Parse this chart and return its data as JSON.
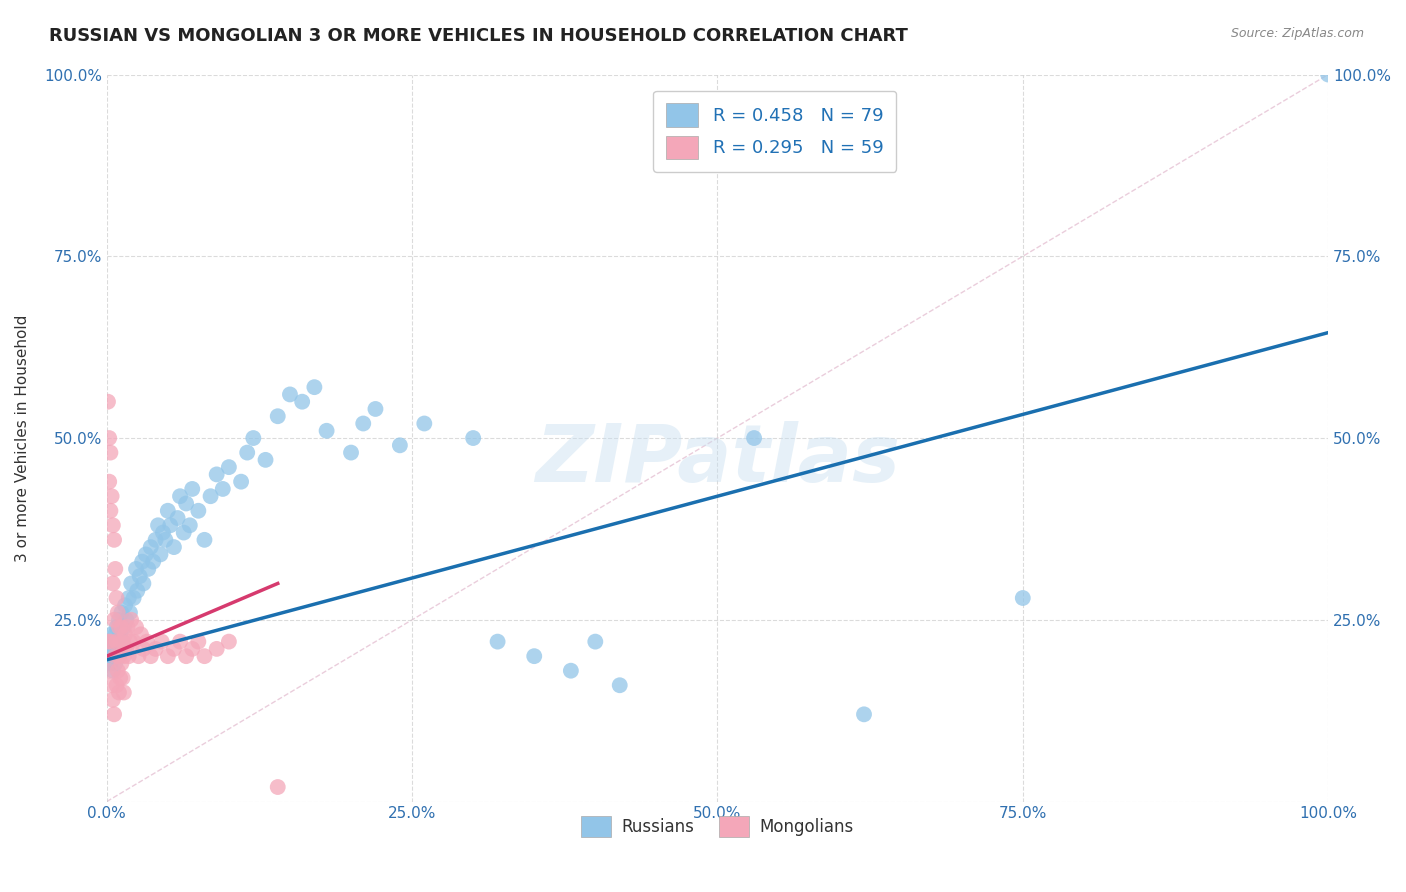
{
  "title": "RUSSIAN VS MONGOLIAN 3 OR MORE VEHICLES IN HOUSEHOLD CORRELATION CHART",
  "source": "Source: ZipAtlas.com",
  "ylabel": "3 or more Vehicles in Household",
  "watermark": "ZIPatlas",
  "russian_R": 0.458,
  "russian_N": 79,
  "mongolian_R": 0.295,
  "mongolian_N": 59,
  "russian_color": "#92c5e8",
  "mongolian_color": "#f4a7b9",
  "russian_line_color": "#1a6faf",
  "mongolian_line_color": "#d63a6e",
  "diagonal_color": "#e8c8d8",
  "grid_color": "#cccccc",
  "background_color": "#ffffff",
  "title_fontsize": 13,
  "label_fontsize": 11,
  "tick_fontsize": 11,
  "russian_x": [
    0.001,
    0.002,
    0.003,
    0.003,
    0.004,
    0.005,
    0.005,
    0.006,
    0.006,
    0.007,
    0.007,
    0.008,
    0.008,
    0.009,
    0.01,
    0.01,
    0.011,
    0.012,
    0.013,
    0.014,
    0.015,
    0.016,
    0.018,
    0.019,
    0.02,
    0.022,
    0.024,
    0.025,
    0.027,
    0.029,
    0.03,
    0.032,
    0.034,
    0.036,
    0.038,
    0.04,
    0.042,
    0.044,
    0.046,
    0.048,
    0.05,
    0.052,
    0.055,
    0.058,
    0.06,
    0.063,
    0.065,
    0.068,
    0.07,
    0.075,
    0.08,
    0.085,
    0.09,
    0.095,
    0.1,
    0.11,
    0.115,
    0.12,
    0.13,
    0.14,
    0.15,
    0.16,
    0.17,
    0.18,
    0.2,
    0.21,
    0.22,
    0.24,
    0.26,
    0.3,
    0.32,
    0.35,
    0.38,
    0.4,
    0.42,
    0.53,
    0.62,
    0.75,
    1.0
  ],
  "russian_y": [
    0.21,
    0.2,
    0.22,
    0.19,
    0.23,
    0.21,
    0.18,
    0.22,
    0.2,
    0.23,
    0.19,
    0.24,
    0.21,
    0.22,
    0.25,
    0.2,
    0.23,
    0.26,
    0.22,
    0.24,
    0.27,
    0.25,
    0.28,
    0.26,
    0.3,
    0.28,
    0.32,
    0.29,
    0.31,
    0.33,
    0.3,
    0.34,
    0.32,
    0.35,
    0.33,
    0.36,
    0.38,
    0.34,
    0.37,
    0.36,
    0.4,
    0.38,
    0.35,
    0.39,
    0.42,
    0.37,
    0.41,
    0.38,
    0.43,
    0.4,
    0.36,
    0.42,
    0.45,
    0.43,
    0.46,
    0.44,
    0.48,
    0.5,
    0.47,
    0.53,
    0.56,
    0.55,
    0.57,
    0.51,
    0.48,
    0.52,
    0.54,
    0.49,
    0.52,
    0.5,
    0.22,
    0.2,
    0.18,
    0.22,
    0.16,
    0.5,
    0.12,
    0.28,
    1.0
  ],
  "mongolian_x": [
    0.001,
    0.001,
    0.002,
    0.002,
    0.002,
    0.003,
    0.003,
    0.003,
    0.004,
    0.004,
    0.005,
    0.005,
    0.005,
    0.006,
    0.006,
    0.006,
    0.007,
    0.007,
    0.008,
    0.008,
    0.008,
    0.009,
    0.009,
    0.01,
    0.01,
    0.01,
    0.011,
    0.011,
    0.012,
    0.012,
    0.013,
    0.013,
    0.014,
    0.014,
    0.015,
    0.016,
    0.017,
    0.018,
    0.019,
    0.02,
    0.022,
    0.024,
    0.026,
    0.028,
    0.03,
    0.033,
    0.036,
    0.04,
    0.045,
    0.05,
    0.055,
    0.06,
    0.065,
    0.07,
    0.075,
    0.08,
    0.09,
    0.1,
    0.14
  ],
  "mongolian_y": [
    0.22,
    0.55,
    0.5,
    0.44,
    0.18,
    0.48,
    0.4,
    0.22,
    0.42,
    0.16,
    0.38,
    0.3,
    0.14,
    0.36,
    0.25,
    0.12,
    0.32,
    0.2,
    0.28,
    0.22,
    0.16,
    0.26,
    0.18,
    0.24,
    0.2,
    0.15,
    0.22,
    0.17,
    0.24,
    0.19,
    0.22,
    0.17,
    0.2,
    0.15,
    0.23,
    0.21,
    0.24,
    0.2,
    0.22,
    0.25,
    0.22,
    0.24,
    0.2,
    0.23,
    0.21,
    0.22,
    0.2,
    0.21,
    0.22,
    0.2,
    0.21,
    0.22,
    0.2,
    0.21,
    0.22,
    0.2,
    0.21,
    0.22,
    0.02
  ],
  "xlim": [
    0.0,
    1.0
  ],
  "ylim": [
    0.0,
    1.0
  ],
  "xticks": [
    0.0,
    0.25,
    0.5,
    0.75,
    1.0
  ],
  "xtick_labels": [
    "0.0%",
    "25.0%",
    "50.0%",
    "75.0%",
    "100.0%"
  ],
  "yticks": [
    0.0,
    0.25,
    0.5,
    0.75,
    1.0
  ],
  "ytick_labels_left": [
    "",
    "25.0%",
    "50.0%",
    "75.0%",
    "100.0%"
  ],
  "ytick_labels_right": [
    "25.0%",
    "50.0%",
    "75.0%",
    "100.0%"
  ],
  "right_yticks": [
    0.25,
    0.5,
    0.75,
    1.0
  ],
  "russian_line_x": [
    0.0,
    1.0
  ],
  "russian_line_y": [
    0.195,
    0.645
  ],
  "mongolian_line_x": [
    0.0,
    0.14
  ],
  "mongolian_line_y": [
    0.2,
    0.3
  ]
}
